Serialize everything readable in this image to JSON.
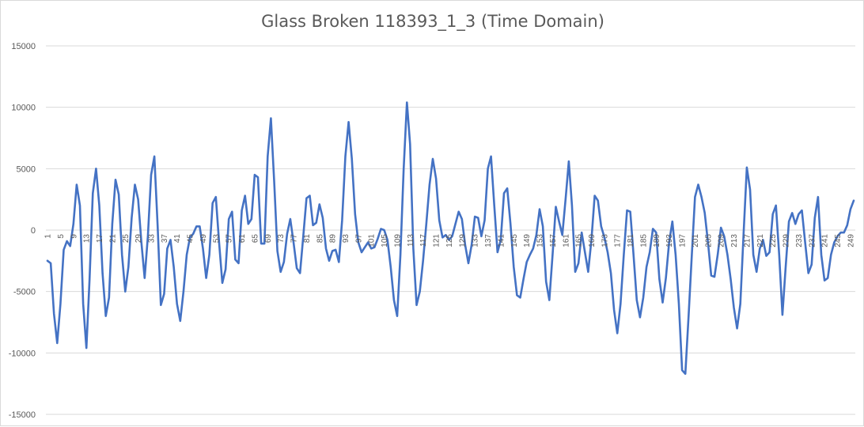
{
  "chart_data": {
    "type": "line",
    "title": "Glass Broken 118393_1_3 (Time Domain)",
    "xlabel": "",
    "ylabel": "",
    "ylim": [
      -15000,
      15000
    ],
    "y_ticks": [
      15000,
      10000,
      5000,
      0,
      -5000,
      -10000,
      -15000
    ],
    "x_tick_labels": [
      "1",
      "5",
      "9",
      "13",
      "17",
      "21",
      "25",
      "29",
      "33",
      "37",
      "41",
      "45",
      "49",
      "53",
      "57",
      "61",
      "65",
      "69",
      "73",
      "77",
      "81",
      "85",
      "89",
      "93",
      "97",
      "101",
      "105",
      "109",
      "113",
      "117",
      "121",
      "125",
      "129",
      "133",
      "137",
      "141",
      "145",
      "149",
      "153",
      "157",
      "161",
      "165",
      "169",
      "173",
      "177",
      "181",
      "185",
      "189",
      "193",
      "197",
      "201",
      "205",
      "209",
      "213",
      "217",
      "221",
      "225",
      "229",
      "233",
      "237",
      "241",
      "245",
      "249"
    ],
    "grid": true,
    "legend": "none",
    "series_color": "#4472c4",
    "series": [
      {
        "x_start": 1,
        "values": [
          -2500,
          -2700,
          -6800,
          -9200,
          -6000,
          -1600,
          -900,
          -1300,
          500,
          3700,
          2000,
          -6000,
          -9600,
          -4000,
          3000,
          5000,
          2000,
          -3500,
          -7000,
          -5500,
          500,
          4100,
          2900,
          -2000,
          -5000,
          -3000,
          1000,
          3700,
          2500,
          -1000,
          -3900,
          -500,
          4500,
          6000,
          400,
          -6100,
          -5200,
          -1500,
          -800,
          -3000,
          -6000,
          -7400,
          -5000,
          -2000,
          -600,
          -300,
          300,
          300,
          -1500,
          -3900,
          -2000,
          2200,
          2700,
          -1000,
          -4300,
          -3200,
          900,
          1500,
          -2400,
          -2700,
          1600,
          2800,
          500,
          900,
          4500,
          4300,
          -1100,
          -1100,
          6000,
          9100,
          4000,
          -1700,
          -3400,
          -2600,
          -300,
          900,
          -1000,
          -3100,
          -3500,
          -500,
          2600,
          2800,
          400,
          600,
          2100,
          1000,
          -1500,
          -2500,
          -1700,
          -1600,
          -2600,
          800,
          6000,
          8800,
          5800,
          1300,
          -1000,
          -1800,
          -1400,
          -1000,
          -1500,
          -1400,
          -700,
          100,
          0,
          -800,
          -3000,
          -5700,
          -7000,
          -2000,
          5000,
          10400,
          7000,
          -1500,
          -6100,
          -5000,
          -2500,
          500,
          3700,
          5800,
          4200,
          800,
          -600,
          -400,
          -800,
          -500,
          500,
          1500,
          900,
          -1200,
          -2700,
          -1200,
          1100,
          1000,
          -500,
          800,
          5000,
          6000,
          2000,
          -1800,
          -800,
          3000,
          3400,
          500,
          -3000,
          -5300,
          -5500,
          -4000,
          -2600,
          -2000,
          -1500,
          -400,
          1700,
          300,
          -4200,
          -5700,
          -2000,
          1900,
          700,
          -400,
          2500,
          5600,
          2000,
          -3400,
          -2700,
          -200,
          -1800,
          -3400,
          -800,
          2800,
          2400,
          300,
          -600,
          -1800,
          -3500,
          -6500,
          -8400,
          -6000,
          -2000,
          1600,
          1500,
          -2000,
          -5700,
          -7100,
          -5500,
          -3000,
          -1800,
          100,
          -200,
          -4000,
          -5900,
          -3900,
          -1000,
          700,
          -2000,
          -6000,
          -11400,
          -11700,
          -7000,
          -2000,
          2700,
          3700,
          2700,
          1400,
          -1000,
          -3700,
          -3800,
          -2000,
          200,
          -500,
          -2000,
          -4000,
          -6300,
          -8000,
          -6000,
          -300,
          5100,
          3300,
          -2000,
          -3400,
          -1500,
          -800,
          -2100,
          -1800,
          1300,
          2000,
          -2000,
          -6900,
          -3000,
          700,
          1400,
          500,
          1300,
          1600,
          -1000,
          -3500,
          -2800,
          1000,
          2700,
          -2000,
          -4100,
          -3900,
          -2000,
          -1000,
          -500,
          -200,
          -200,
          400,
          1700,
          2400
        ]
      }
    ]
  }
}
